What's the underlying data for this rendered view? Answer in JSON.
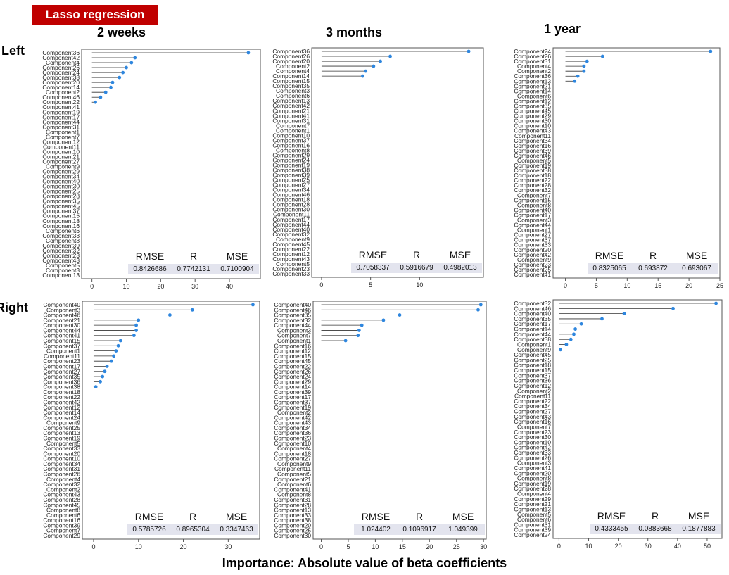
{
  "badge": "Lasso regression",
  "columns": [
    "2 weeks",
    "3 months",
    "1 year"
  ],
  "rows": [
    "Left",
    "Right"
  ],
  "x_axis_title": "Importance: Absolute value of beta coefficients",
  "stat_headers": [
    "RMSE",
    "R",
    "MSE"
  ],
  "colors": {
    "point": "#2e86de",
    "line": "#333333",
    "badge": "#c00000",
    "stats_bg": "#e3e4ee"
  },
  "chart_data": [
    {
      "type": "lollipop",
      "row": "Left",
      "column": "2 weeks",
      "xlim": [
        -3,
        49
      ],
      "xticks": [
        0,
        10,
        20,
        30,
        40
      ],
      "labels": [
        "Component36",
        "Component42",
        "Component4",
        "Component26",
        "Component24",
        "Component38",
        "Component20",
        "Component14",
        "Component2",
        "Component46",
        "Component22",
        "Component41",
        "Component19",
        "Component17",
        "Component44",
        "Component31",
        "Component1",
        "Component7",
        "Component12",
        "Component11",
        "Component10",
        "Component21",
        "Component27",
        "Component9",
        "Component29",
        "Component34",
        "Component40",
        "Component30",
        "Component25",
        "Component28",
        "Component35",
        "Component45",
        "Component37",
        "Component15",
        "Component18",
        "Component16",
        "Component6",
        "Component33",
        "Component8",
        "Component39",
        "Component32",
        "Component23",
        "Component43",
        "Component5",
        "Component3",
        "Component13"
      ],
      "values": [
        45.5,
        12.5,
        11.5,
        10.0,
        9.0,
        8.0,
        6.0,
        5.5,
        4.0,
        2.5,
        1.0,
        0,
        0,
        0,
        0,
        0,
        0,
        0,
        0,
        0,
        0,
        0,
        0,
        0,
        0,
        0,
        0,
        0,
        0,
        0,
        0,
        0,
        0,
        0,
        0,
        0,
        0,
        0,
        0,
        0,
        0,
        0,
        0,
        0,
        0,
        0
      ],
      "stats": {
        "RMSE": "0.8426686",
        "R": "0.7742131",
        "MSE": "0.7100904"
      }
    },
    {
      "type": "lollipop",
      "row": "Left",
      "column": "3 months",
      "xlim": [
        -1,
        16.5
      ],
      "xticks": [
        0,
        5,
        10
      ],
      "labels": [
        "Component36",
        "Component26",
        "Component20",
        "Component2",
        "Component4",
        "Component14",
        "Component15",
        "Component35",
        "Component3",
        "Component6",
        "Component13",
        "Component42",
        "Component21",
        "Component41",
        "Component31",
        "Component7",
        "Component1",
        "Component10",
        "Component37",
        "Component16",
        "Component8",
        "Component29",
        "Component24",
        "Component19",
        "Component38",
        "Component39",
        "Component25",
        "Component27",
        "Component34",
        "Component46",
        "Component18",
        "Component28",
        "Component30",
        "Component11",
        "Component17",
        "Component44",
        "Component40",
        "Component32",
        "Component9",
        "Component45",
        "Component22",
        "Component12",
        "Component43",
        "Component5",
        "Component23",
        "Component33"
      ],
      "values": [
        15.0,
        7.0,
        6.0,
        5.3,
        4.5,
        4.2,
        0,
        0,
        0,
        0,
        0,
        0,
        0,
        0,
        0,
        0,
        0,
        0,
        0,
        0,
        0,
        0,
        0,
        0,
        0,
        0,
        0,
        0,
        0,
        0,
        0,
        0,
        0,
        0,
        0,
        0,
        0,
        0,
        0,
        0,
        0,
        0,
        0,
        0,
        0,
        0
      ],
      "stats": {
        "RMSE": "0.7058337",
        "R": "0.5916679",
        "MSE": "0.4982013"
      }
    },
    {
      "type": "lollipop",
      "row": "Left",
      "column": "1 year",
      "xlim": [
        -2,
        25
      ],
      "xticks": [
        0,
        5,
        10,
        15,
        20,
        25
      ],
      "labels": [
        "Component24",
        "Component26",
        "Component31",
        "Component4",
        "Component2",
        "Component36",
        "Component13",
        "Component21",
        "Component14",
        "Component6",
        "Component12",
        "Component35",
        "Component45",
        "Component29",
        "Component30",
        "Component10",
        "Component43",
        "Component11",
        "Component34",
        "Component16",
        "Component39",
        "Component46",
        "Component5",
        "Component19",
        "Component38",
        "Component18",
        "Component22",
        "Component28",
        "Component32",
        "Component7",
        "Component15",
        "Component8",
        "Component40",
        "Component17",
        "Component3",
        "Component44",
        "Component1",
        "Component27",
        "Component37",
        "Component33",
        "Component20",
        "Component42",
        "Component9",
        "Component23",
        "Component25",
        "Component41"
      ],
      "values": [
        23.5,
        6.0,
        3.5,
        3.0,
        3.0,
        2.0,
        1.5,
        0,
        0,
        0,
        0,
        0,
        0,
        0,
        0,
        0,
        0,
        0,
        0,
        0,
        0,
        0,
        0,
        0,
        0,
        0,
        0,
        0,
        0,
        0,
        0,
        0,
        0,
        0,
        0,
        0,
        0,
        0,
        0,
        0,
        0,
        0,
        0,
        0,
        0,
        0
      ],
      "stats": {
        "RMSE": "0.8325065",
        "R": "0.693872",
        "MSE": "0.693067"
      }
    },
    {
      "type": "lollipop",
      "row": "Right",
      "column": "2 weeks",
      "xlim": [
        -2.5,
        37
      ],
      "xticks": [
        0,
        10,
        20,
        30
      ],
      "labels": [
        "Component40",
        "Component3",
        "Component46",
        "Component21",
        "Component30",
        "Component44",
        "Component41",
        "Component15",
        "Component37",
        "Component1",
        "Component11",
        "Component23",
        "Component17",
        "Component27",
        "Component35",
        "Component36",
        "Component38",
        "Component18",
        "Component22",
        "Component42",
        "Component12",
        "Component14",
        "Component24",
        "Component9",
        "Component25",
        "Component13",
        "Component19",
        "Component5",
        "Component33",
        "Component20",
        "Component10",
        "Component34",
        "Component31",
        "Component26",
        "Component4",
        "Component32",
        "Component2",
        "Component43",
        "Component28",
        "Component45",
        "Component8",
        "Component6",
        "Component16",
        "Component39",
        "Component7",
        "Component29"
      ],
      "values": [
        35.5,
        22.0,
        17.0,
        10.0,
        9.5,
        9.5,
        9.0,
        6.0,
        5.5,
        5.0,
        4.5,
        4.0,
        3.0,
        2.5,
        2.0,
        1.5,
        0.5,
        0,
        0,
        0,
        0,
        0,
        0,
        0,
        0,
        0,
        0,
        0,
        0,
        0,
        0,
        0,
        0,
        0,
        0,
        0,
        0,
        0,
        0,
        0,
        0,
        0,
        0,
        0,
        0,
        0
      ],
      "stats": {
        "RMSE": "0.5785726",
        "R": "0.8965304",
        "MSE": "0.3347463"
      }
    },
    {
      "type": "lollipop",
      "row": "Right",
      "column": "3 months",
      "xlim": [
        -1.5,
        30.5
      ],
      "xticks": [
        0,
        5,
        10,
        15,
        20,
        25,
        30
      ],
      "labels": [
        "Component40",
        "Component46",
        "Component35",
        "Component32",
        "Component44",
        "Component3",
        "Component7",
        "Component1",
        "Component16",
        "Component12",
        "Component15",
        "Component45",
        "Component22",
        "Component26",
        "Component24",
        "Component29",
        "Component14",
        "Component39",
        "Component17",
        "Component37",
        "Component19",
        "Component2",
        "Component42",
        "Component43",
        "Component34",
        "Component36",
        "Component23",
        "Component10",
        "Component4",
        "Component18",
        "Component27",
        "Component9",
        "Component11",
        "Component5",
        "Component21",
        "Component6",
        "Component41",
        "Component8",
        "Component31",
        "Component28",
        "Component13",
        "Component33",
        "Component38",
        "Component20",
        "Component25",
        "Component30"
      ],
      "values": [
        29.5,
        29.0,
        14.5,
        11.5,
        7.5,
        7.0,
        6.8,
        4.5,
        0,
        0,
        0,
        0,
        0,
        0,
        0,
        0,
        0,
        0,
        0,
        0,
        0,
        0,
        0,
        0,
        0,
        0,
        0,
        0,
        0,
        0,
        0,
        0,
        0,
        0,
        0,
        0,
        0,
        0,
        0,
        0,
        0,
        0,
        0,
        0,
        0,
        0
      ],
      "stats": {
        "RMSE": "1.024402",
        "R": "0.1096917",
        "MSE": "1.049399"
      }
    },
    {
      "type": "lollipop",
      "row": "Right",
      "column": "1 year",
      "xlim": [
        -2,
        55
      ],
      "xticks": [
        0,
        10,
        20,
        30,
        40,
        50
      ],
      "labels": [
        "Component32",
        "Component46",
        "Component40",
        "Component35",
        "Component17",
        "Component14",
        "Component44",
        "Component38",
        "Component1",
        "Component9",
        "Component45",
        "Component25",
        "Component18",
        "Component15",
        "Component37",
        "Component36",
        "Component12",
        "Component2",
        "Component11",
        "Component22",
        "Component34",
        "Component27",
        "Component43",
        "Component16",
        "Component7",
        "Component23",
        "Component30",
        "Component10",
        "Component42",
        "Component33",
        "Component26",
        "Component3",
        "Component41",
        "Component20",
        "Component8",
        "Component19",
        "Component28",
        "Component4",
        "Component29",
        "Component21",
        "Component13",
        "Component5",
        "Component6",
        "Component31",
        "Component39",
        "Component24"
      ],
      "values": [
        53.0,
        38.5,
        22.0,
        14.5,
        7.5,
        5.5,
        5.0,
        4.0,
        2.5,
        0.5,
        0,
        0,
        0,
        0,
        0,
        0,
        0,
        0,
        0,
        0,
        0,
        0,
        0,
        0,
        0,
        0,
        0,
        0,
        0,
        0,
        0,
        0,
        0,
        0,
        0,
        0,
        0,
        0,
        0,
        0,
        0,
        0,
        0,
        0,
        0,
        0
      ],
      "stats": {
        "RMSE": "0.4333455",
        "R": "0.0883668",
        "MSE": "0.1877883"
      }
    }
  ]
}
